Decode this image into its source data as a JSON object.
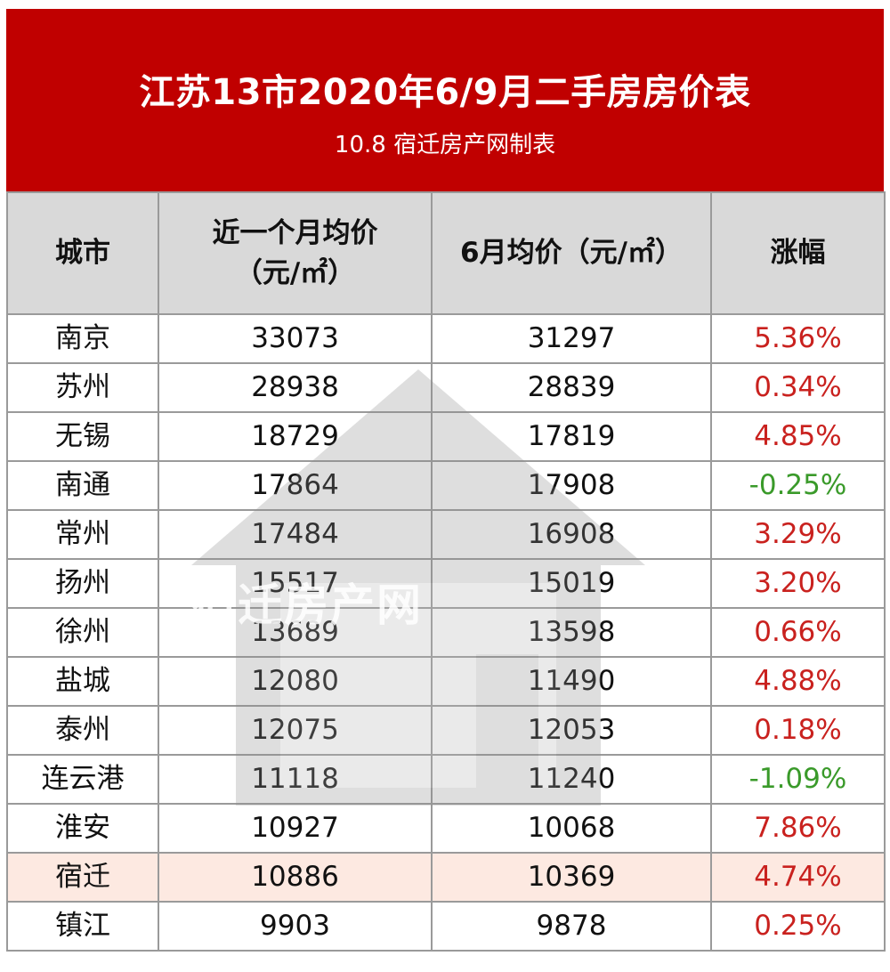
{
  "header": {
    "title": "江苏13市2020年6/9月二手房房价表",
    "subtitle": "10.8 宿迁房产网制表"
  },
  "table": {
    "columns": {
      "city": "城市",
      "recent_avg_line1": "近一个月均价",
      "recent_avg_line2": "（元/㎡）",
      "june_avg": "6月均价（元/㎡）",
      "change": "涨幅"
    },
    "rows": [
      {
        "city": "南京",
        "recent": "33073",
        "june": "31297",
        "change": "5.36%",
        "direction": "up"
      },
      {
        "city": "苏州",
        "recent": "28938",
        "june": "28839",
        "change": "0.34%",
        "direction": "up"
      },
      {
        "city": "无锡",
        "recent": "18729",
        "june": "17819",
        "change": "4.85%",
        "direction": "up"
      },
      {
        "city": "南通",
        "recent": "17864",
        "june": "17908",
        "change": "-0.25%",
        "direction": "down"
      },
      {
        "city": "常州",
        "recent": "17484",
        "june": "16908",
        "change": "3.29%",
        "direction": "up"
      },
      {
        "city": "扬州",
        "recent": "15517",
        "june": "15019",
        "change": "3.20%",
        "direction": "up"
      },
      {
        "city": "徐州",
        "recent": "13689",
        "june": "13598",
        "change": "0.66%",
        "direction": "up"
      },
      {
        "city": "盐城",
        "recent": "12080",
        "june": "11490",
        "change": "4.88%",
        "direction": "up"
      },
      {
        "city": "泰州",
        "recent": "12075",
        "june": "12053",
        "change": "0.18%",
        "direction": "up"
      },
      {
        "city": "连云港",
        "recent": "11118",
        "june": "11240",
        "change": "-1.09%",
        "direction": "down"
      },
      {
        "city": "淮安",
        "recent": "10927",
        "june": "10068",
        "change": "7.86%",
        "direction": "up"
      },
      {
        "city": "宿迁",
        "recent": "10886",
        "june": "10369",
        "change": "4.74%",
        "direction": "up",
        "highlight": true
      },
      {
        "city": "镇江",
        "recent": "9903",
        "june": "9878",
        "change": "0.25%",
        "direction": "up"
      }
    ]
  },
  "watermark": {
    "text": "宿迁房产网"
  },
  "colors": {
    "header_bg": "#c00000",
    "positive": "#c9211e",
    "negative": "#3a9a2a",
    "highlight_row": "#fde9e1"
  }
}
